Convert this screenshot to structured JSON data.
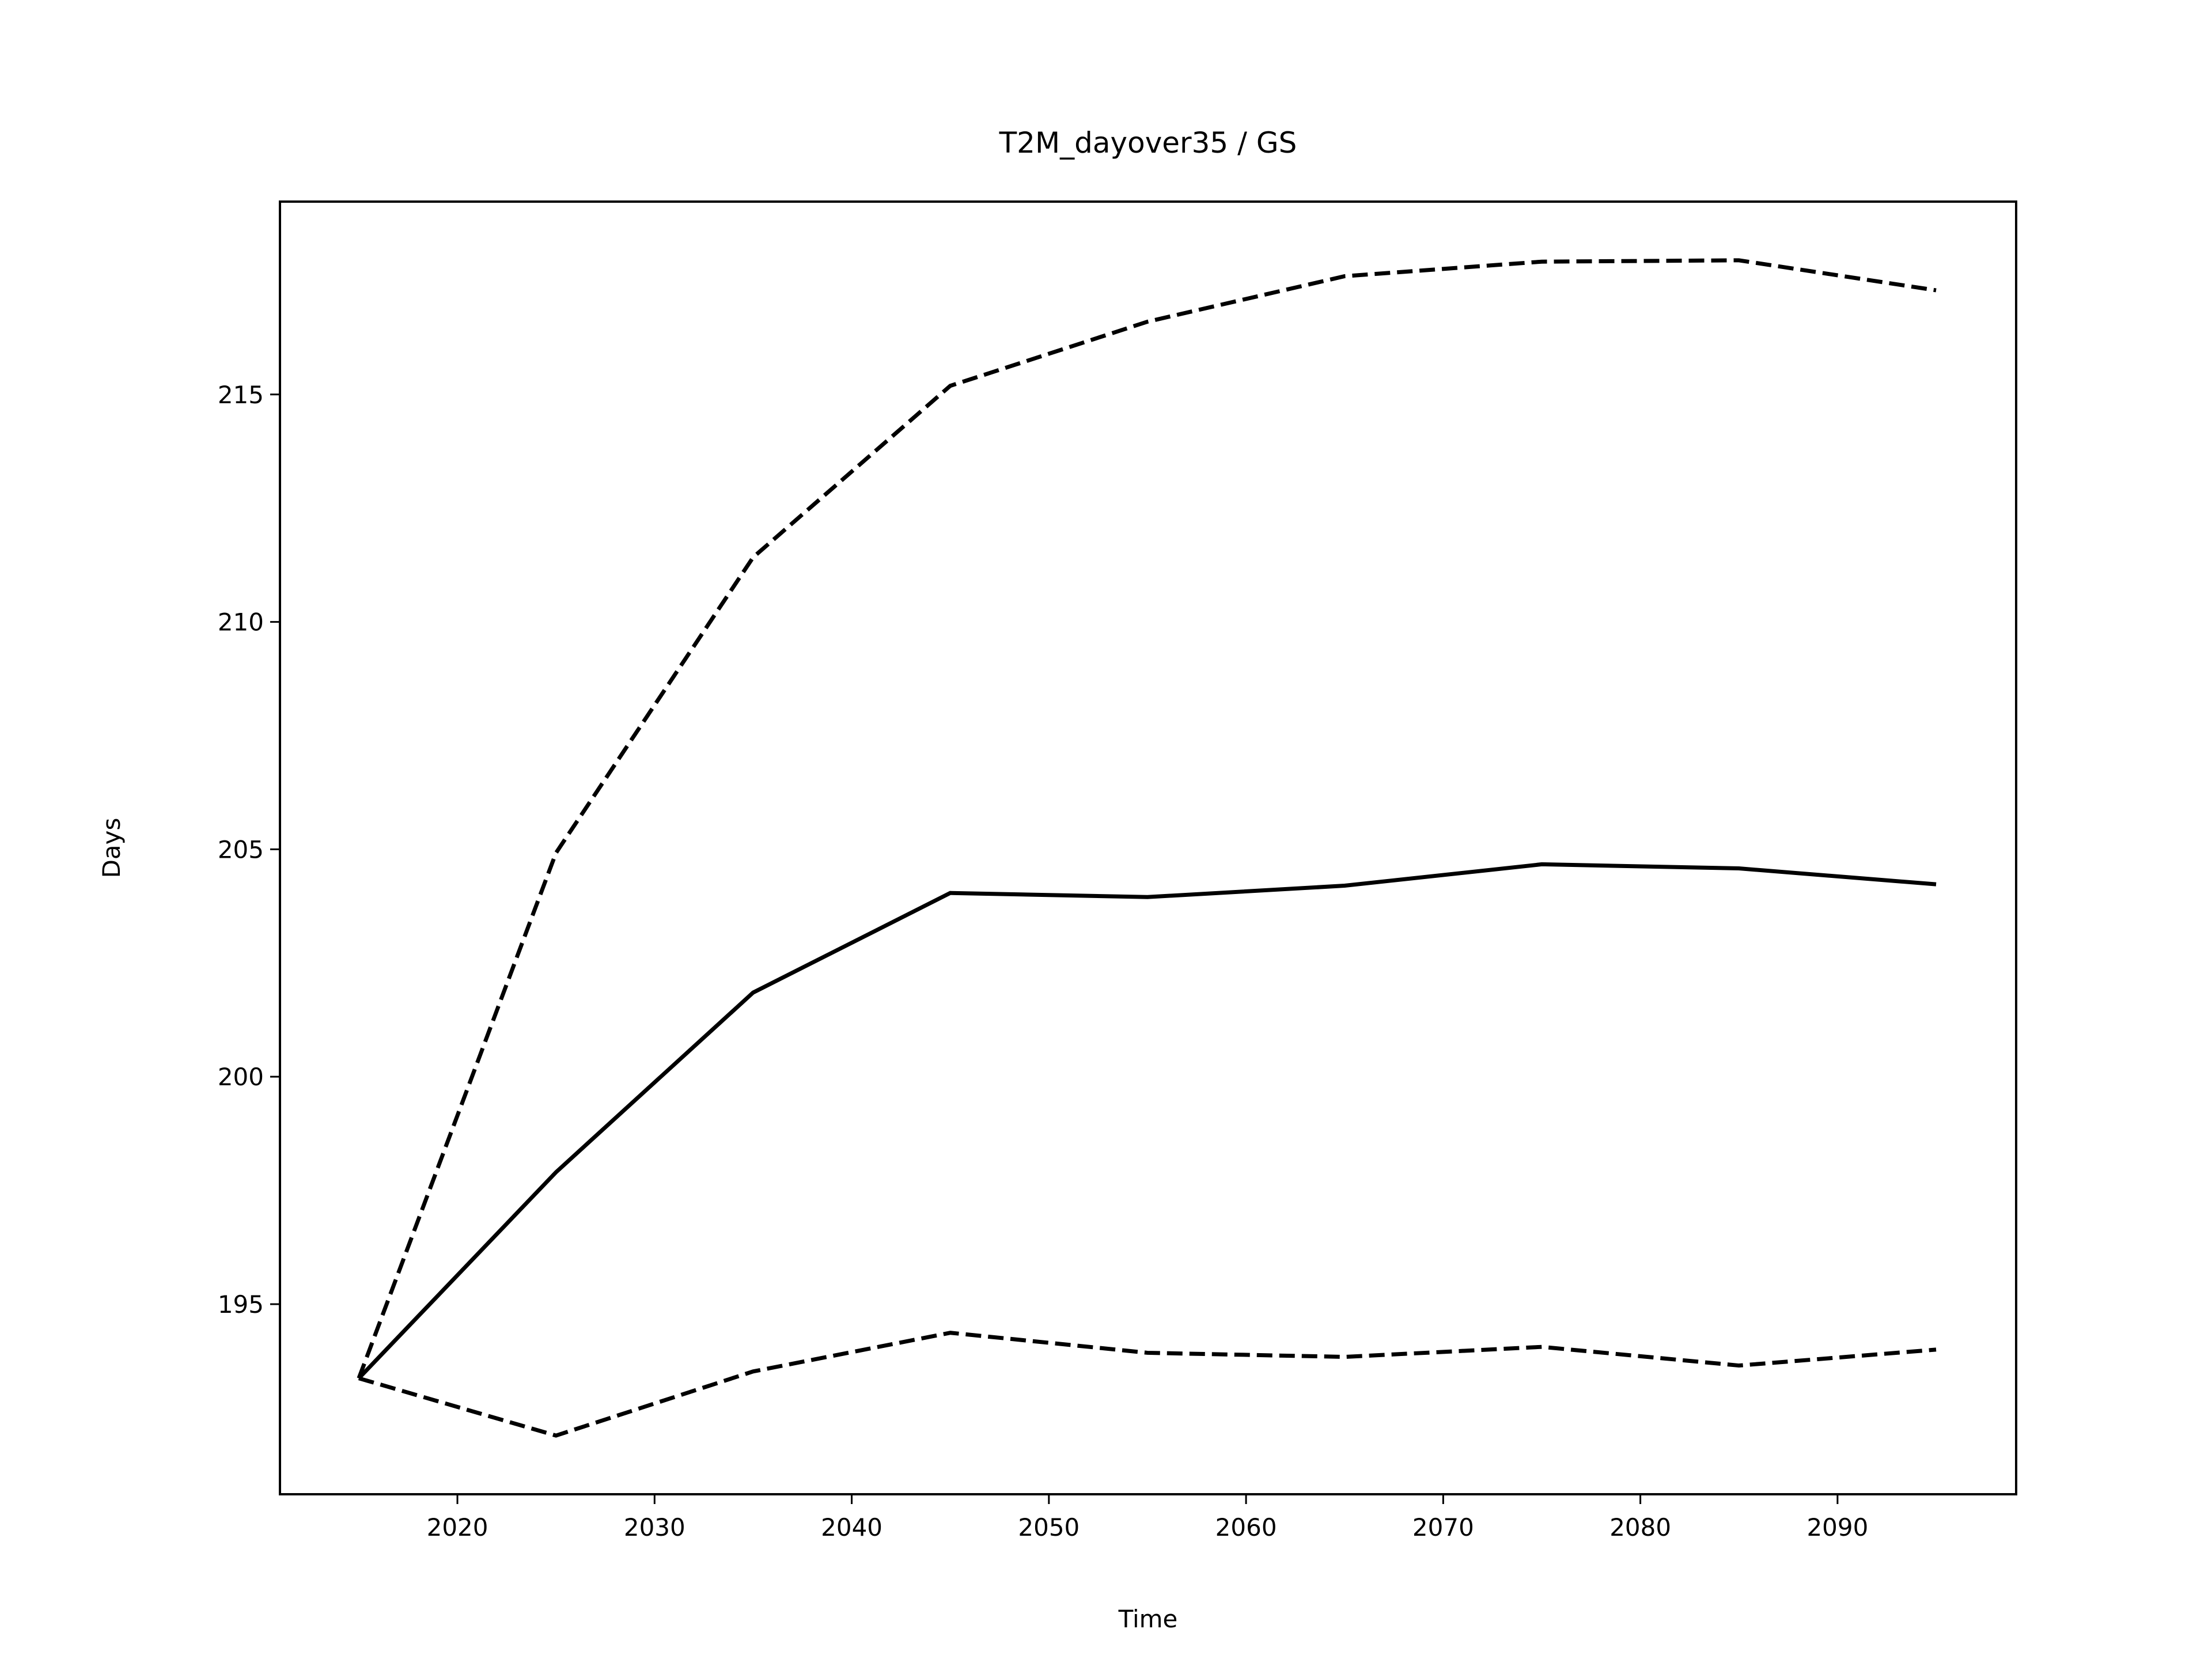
{
  "chart_data": {
    "type": "line",
    "title": "T2M_dayover35 / GS",
    "x_label": "Time",
    "y_label": "Days",
    "x": [
      2015,
      2025,
      2035,
      2045,
      2055,
      2065,
      2075,
      2085,
      2095
    ],
    "series": [
      {
        "color": "#000000",
        "style": "solid",
        "values": [
          193.37,
          197.9,
          201.85,
          204.04,
          203.95,
          204.2,
          204.67,
          204.58,
          204.23
        ]
      },
      {
        "color": "#000000",
        "style": "dashed",
        "values": [
          193.37,
          204.92,
          211.42,
          215.19,
          216.6,
          217.6,
          217.92,
          217.95,
          217.29
        ]
      },
      {
        "color": "#000000",
        "style": "dashed",
        "values": [
          193.37,
          192.11,
          193.52,
          194.37,
          193.93,
          193.84,
          194.06,
          193.65,
          194.0
        ]
      }
    ],
    "xlim": [
      2011.0,
      2099.06
    ],
    "xticks": [
      2020,
      2030,
      2040,
      2050,
      2060,
      2070,
      2080,
      2090
    ],
    "ylim": [
      190.82,
      219.24
    ],
    "yticks": [
      195,
      200,
      205,
      210,
      215
    ],
    "grid": false
  }
}
